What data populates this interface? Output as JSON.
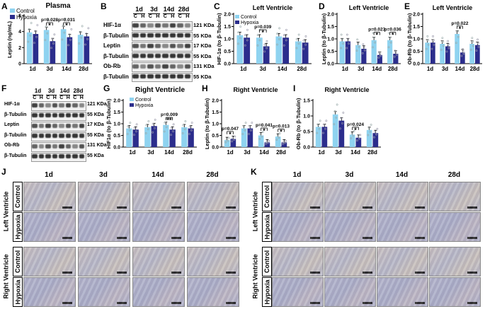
{
  "colors": {
    "control": "#8fd3f0",
    "hypoxia": "#2b2d8c"
  },
  "legend": {
    "control": "Control",
    "hypoxia": "Hypoxia"
  },
  "panels": {
    "A": {
      "letter": "A",
      "title": "Plasma",
      "ylabel": "Leptin (ng/mL)"
    },
    "B": {
      "letter": "B",
      "days": [
        "1d",
        "3d",
        "14d",
        "28d"
      ],
      "groups": [
        "C",
        "H",
        "C",
        "H",
        "C",
        "H",
        "C",
        "H"
      ],
      "rows": [
        {
          "label": "HIF-1α",
          "kda": "121 KDa"
        },
        {
          "label": "β-Tubulin",
          "kda": "55 KDa"
        },
        {
          "label": "Leptin",
          "kda": "17 KDa"
        },
        {
          "label": "β-Tubulin",
          "kda": "55 KDa"
        },
        {
          "label": "Ob-Rb",
          "kda": "131 KDa"
        },
        {
          "label": "β-Tubulin",
          "kda": "55 KDa"
        }
      ]
    },
    "C": {
      "letter": "C",
      "title": "Left Ventricle",
      "ylabel": "HIF-1α (to β-Tubulin)"
    },
    "D": {
      "letter": "D",
      "title": "Left Ventricle",
      "ylabel": "Leptin (to β-Tubulin)"
    },
    "E": {
      "letter": "E",
      "title": "Left Ventricle",
      "ylabel": "Ob-Rb (to β-Tubulin)"
    },
    "F": {
      "letter": "F",
      "days": [
        "1d",
        "3d",
        "14d",
        "28d"
      ],
      "groups": [
        "C",
        "H",
        "C",
        "H",
        "C",
        "H",
        "C",
        "H"
      ],
      "rows": [
        {
          "label": "HIF-1α",
          "kda": "121 KDa"
        },
        {
          "label": "β-Tubulin",
          "kda": "55 KDa"
        },
        {
          "label": "Leptin",
          "kda": "17 KDa"
        },
        {
          "label": "β-Tubulin",
          "kda": "55 KDa"
        },
        {
          "label": "Ob-Rb",
          "kda": "131 KDa"
        },
        {
          "label": "β-Tubulin",
          "kda": "55 KDa"
        }
      ]
    },
    "G": {
      "letter": "G",
      "title": "Right Ventricle",
      "ylabel": "HIF1α (to β-Tubulin)"
    },
    "H": {
      "letter": "H",
      "title": "Right Ventricle",
      "ylabel": "Leptin (to β-Tubulin)"
    },
    "I": {
      "letter": "I",
      "title": "Right Ventricle",
      "ylabel": "Ob-Rb (to β-Tubulin)"
    },
    "J": {
      "letter": "J",
      "days": [
        "1d",
        "3d",
        "14d",
        "28d"
      ],
      "section1": "Left Ventricle",
      "section2": "Right Ventricle",
      "control": "Control",
      "hypoxia": "Hypoxia"
    },
    "K": {
      "letter": "K",
      "days": [
        "1d",
        "3d",
        "14d",
        "28d"
      ],
      "section1": "Left Ventricle",
      "section2": "Right Ventricle",
      "control": "Control",
      "hypoxia": "Hypoxia"
    }
  },
  "chart_data": [
    {
      "id": "A",
      "type": "bar",
      "title": "Plasma",
      "ylabel": "Leptin (ng/mL)",
      "categories": [
        "1d",
        "3d",
        "14d",
        "28d"
      ],
      "ylim": [
        0,
        6
      ],
      "yticks": [
        0,
        2,
        4,
        6
      ],
      "series": [
        {
          "name": "Control",
          "values": [
            3.9,
            4.2,
            4.3,
            3.6
          ]
        },
        {
          "name": "Hypoxia",
          "values": [
            3.7,
            2.8,
            3.3,
            3.4
          ]
        }
      ],
      "annotations": [
        {
          "category": "3d",
          "text": "p=0.028",
          "stars": "*"
        },
        {
          "category": "14d",
          "text": "p=0.031",
          "stars": "*"
        }
      ]
    },
    {
      "id": "C",
      "type": "bar",
      "title": "Left Ventricle",
      "ylabel": "HIF-1α (to β-Tubulin)",
      "categories": [
        "1d",
        "3d",
        "14d",
        "28d"
      ],
      "ylim": [
        0,
        2.0
      ],
      "yticks": [
        0.0,
        0.5,
        1.0,
        1.5,
        2.0
      ],
      "series": [
        {
          "name": "Control",
          "values": [
            1.15,
            1.05,
            1.1,
            0.9
          ]
        },
        {
          "name": "Hypoxia",
          "values": [
            1.05,
            0.7,
            1.05,
            0.85
          ]
        }
      ],
      "annotations": [
        {
          "category": "3d",
          "text": "p=0.039",
          "stars": "*"
        }
      ]
    },
    {
      "id": "D",
      "type": "bar",
      "title": "Left Ventricle",
      "ylabel": "Leptin (to β-Tubulin)",
      "categories": [
        "1d",
        "3d",
        "14d",
        "28d"
      ],
      "ylim": [
        0,
        2.0
      ],
      "yticks": [
        0.0,
        0.5,
        1.0,
        1.5,
        2.0
      ],
      "series": [
        {
          "name": "Control",
          "values": [
            0.9,
            0.75,
            0.95,
            0.95
          ]
        },
        {
          "name": "Hypoxia",
          "values": [
            0.9,
            0.6,
            0.35,
            0.4
          ]
        }
      ],
      "annotations": [
        {
          "category": "14d",
          "text": "p=0.023",
          "stars": "*"
        },
        {
          "category": "28d",
          "text": "p=0.036",
          "stars": "*"
        }
      ]
    },
    {
      "id": "E",
      "type": "bar",
      "title": "Left Ventricle",
      "ylabel": "Ob-Rb (to β-Tubulin)",
      "categories": [
        "1d",
        "3d",
        "14d",
        "28d"
      ],
      "ylim": [
        0,
        2.0
      ],
      "yticks": [
        0.0,
        0.5,
        1.0,
        1.5,
        2.0
      ],
      "series": [
        {
          "name": "Control",
          "values": [
            0.85,
            0.8,
            1.2,
            0.8
          ]
        },
        {
          "name": "Hypoxia",
          "values": [
            0.85,
            0.7,
            0.45,
            0.75
          ]
        }
      ],
      "annotations": [
        {
          "category": "14d",
          "text": "p=0.022",
          "stars": "*"
        }
      ]
    },
    {
      "id": "G",
      "type": "bar",
      "title": "Right Ventricle",
      "ylabel": "HIF1α (to β-Tubulin)",
      "categories": [
        "1d",
        "3d",
        "14d",
        "28d"
      ],
      "ylim": [
        0,
        2.0
      ],
      "yticks": [
        0.0,
        0.5,
        1.0,
        1.5,
        2.0
      ],
      "series": [
        {
          "name": "Control",
          "values": [
            0.8,
            0.85,
            0.95,
            0.85
          ]
        },
        {
          "name": "Hypoxia",
          "values": [
            0.75,
            0.9,
            0.75,
            0.8
          ]
        }
      ],
      "annotations": [
        {
          "category": "14d",
          "text": "p=0.009",
          "stars": "**"
        }
      ]
    },
    {
      "id": "H",
      "type": "bar",
      "title": "Right Ventricle",
      "ylabel": "Leptin (to β-Tubulin)",
      "categories": [
        "1d",
        "3d",
        "14d",
        "28d"
      ],
      "ylim": [
        0,
        2.0
      ],
      "yticks": [
        0.0,
        0.5,
        1.0,
        1.5,
        2.0
      ],
      "series": [
        {
          "name": "Control",
          "values": [
            0.3,
            0.8,
            0.5,
            0.45
          ]
        },
        {
          "name": "Hypoxia",
          "values": [
            0.35,
            0.8,
            0.2,
            0.2
          ]
        }
      ],
      "annotations": [
        {
          "category": "1d",
          "text": "p=0.047",
          "stars": "*"
        },
        {
          "category": "14d",
          "text": "p=0.041",
          "stars": "*"
        },
        {
          "category": "28d",
          "text": "p=0.013",
          "stars": "*"
        }
      ]
    },
    {
      "id": "I",
      "type": "bar",
      "title": "Right Ventricle",
      "ylabel": "Ob-Rb (to β-Tubulin)",
      "categories": [
        "1d",
        "3d",
        "14d",
        "28d"
      ],
      "ylim": [
        0,
        1.5
      ],
      "yticks": [
        0.0,
        0.5,
        1.0,
        1.5
      ],
      "series": [
        {
          "name": "Control",
          "values": [
            0.65,
            1.05,
            0.4,
            0.55
          ]
        },
        {
          "name": "Hypoxia",
          "values": [
            0.65,
            0.85,
            0.3,
            0.45
          ]
        }
      ],
      "annotations": [
        {
          "category": "14d",
          "text": "p=0.024",
          "stars": "*"
        }
      ]
    }
  ]
}
